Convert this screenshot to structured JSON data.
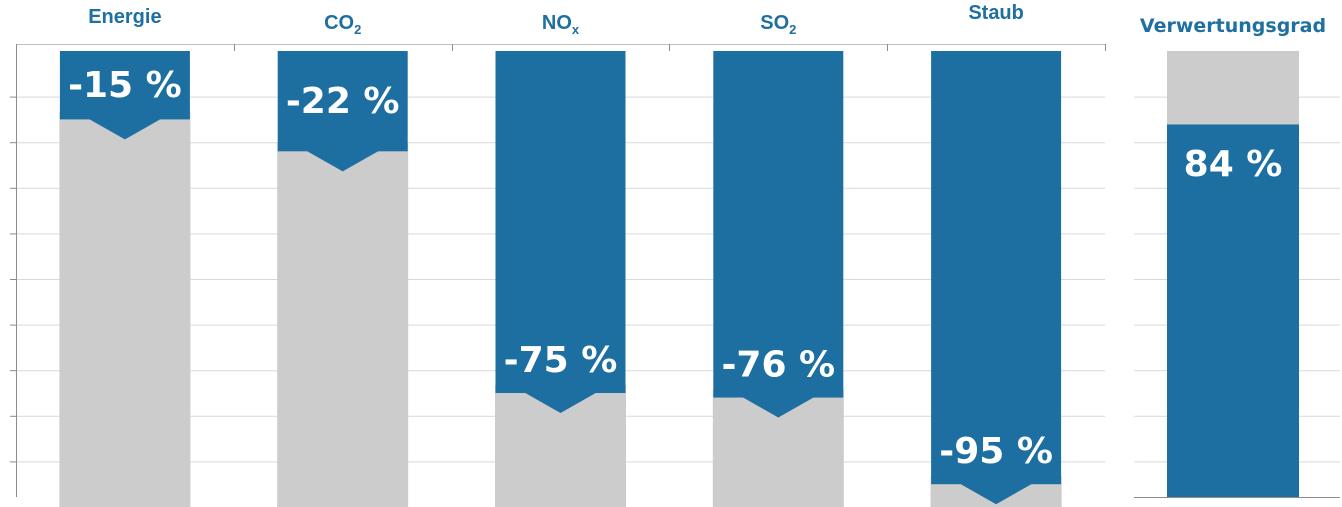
{
  "chart_data": [
    {
      "type": "bar",
      "categories": [
        "Energie",
        "CO2",
        "NOx",
        "SO2",
        "Staub"
      ],
      "category_labels": [
        {
          "base": "Energie",
          "sub": ""
        },
        {
          "base": "CO",
          "sub": "2"
        },
        {
          "base": "NO",
          "sub": "x"
        },
        {
          "base": "SO",
          "sub": "2"
        },
        {
          "base": "Staub",
          "sub": ""
        }
      ],
      "values": [
        -15,
        -22,
        -75,
        -76,
        -95
      ],
      "value_labels": [
        "-15 %",
        "-22 %",
        "-75 %",
        "-76 %",
        "-95 %"
      ],
      "ylim": [
        0,
        100
      ],
      "grid": true,
      "colors": {
        "reduction": "#1c6fa0",
        "remaining": "#cccccc",
        "label": "#1f70a0",
        "grid": "#d9d9d9"
      }
    },
    {
      "type": "bar",
      "categories": [
        "Verwertungsgrad"
      ],
      "values": [
        84
      ],
      "value_labels": [
        "84 %"
      ],
      "ylim": [
        0,
        100
      ],
      "grid": true,
      "colors": {
        "filled": "#1c6fa0",
        "remaining": "#cccccc"
      }
    }
  ]
}
